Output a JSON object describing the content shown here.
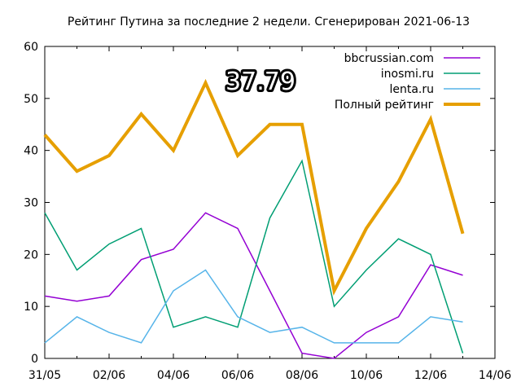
{
  "chart_data": {
    "type": "line",
    "title": "Рейтинг Путина за последние 2 недели. Сгенерирован 2021-06-13",
    "xlabel": "",
    "ylabel": "",
    "overlay_value": "37.79",
    "x": [
      "2021-05-31",
      "2021-06-01",
      "2021-06-02",
      "2021-06-03",
      "2021-06-04",
      "2021-06-05",
      "2021-06-06",
      "2021-06-07",
      "2021-06-08",
      "2021-06-09",
      "2021-06-10",
      "2021-06-11",
      "2021-06-12",
      "2021-06-13"
    ],
    "xlim": [
      "2021-05-31",
      "2021-06-14"
    ],
    "x_ticks": [
      {
        "date": "2021-05-31",
        "label": "31/05"
      },
      {
        "date": "2021-06-02",
        "label": "02/06"
      },
      {
        "date": "2021-06-04",
        "label": "04/06"
      },
      {
        "date": "2021-06-06",
        "label": "06/06"
      },
      {
        "date": "2021-06-08",
        "label": "08/06"
      },
      {
        "date": "2021-06-10",
        "label": "10/06"
      },
      {
        "date": "2021-06-12",
        "label": "12/06"
      },
      {
        "date": "2021-06-14",
        "label": "14/06"
      }
    ],
    "ylim": [
      0,
      60
    ],
    "y_ticks": [
      0,
      10,
      20,
      30,
      40,
      50,
      60
    ],
    "grid": false,
    "legend_position": "top-right",
    "series": [
      {
        "name": "bbcrussian.com",
        "color": "#9400d3",
        "line": "thin",
        "values": [
          12,
          11,
          12,
          19,
          21,
          28,
          25,
          13,
          1,
          0,
          5,
          8,
          18,
          16
        ]
      },
      {
        "name": "inosmi.ru",
        "color": "#009e73",
        "line": "thin",
        "values": [
          28,
          17,
          22,
          25,
          6,
          8,
          6,
          27,
          38,
          10,
          17,
          23,
          20,
          1
        ]
      },
      {
        "name": "lenta.ru",
        "color": "#56b4e9",
        "line": "thin",
        "values": [
          3,
          8,
          5,
          3,
          13,
          17,
          8,
          5,
          6,
          3,
          3,
          3,
          8,
          7
        ]
      },
      {
        "name": "Полный рейтинг",
        "color": "#e69f00",
        "line": "thick",
        "values": [
          43,
          36,
          39,
          47,
          40,
          53,
          39,
          45,
          45,
          13,
          25,
          34,
          46,
          24
        ]
      }
    ]
  }
}
